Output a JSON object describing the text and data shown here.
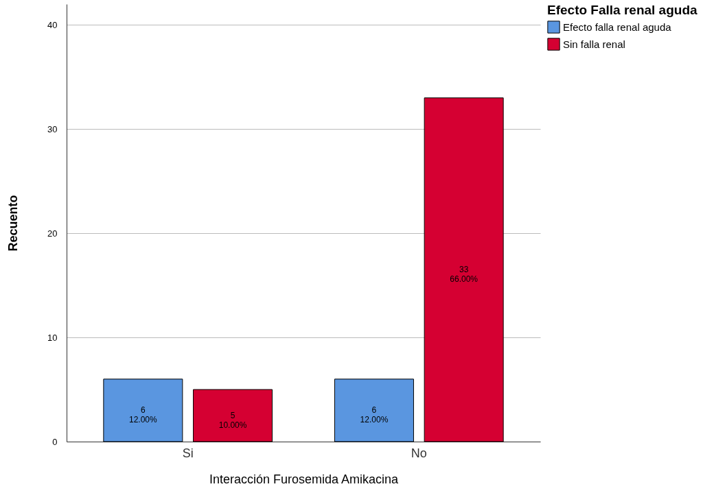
{
  "chart_data": {
    "type": "bar",
    "xlabel": "Interacción Furosemida Amikacina",
    "ylabel": "Recuento",
    "legend_title": "Efecto Falla renal aguda",
    "categories": [
      "Si",
      "No"
    ],
    "series": [
      {
        "name": "Efecto falla renal aguda",
        "color": "#5a96e0",
        "values": [
          6,
          6
        ],
        "value_labels": [
          "6\n12.00%",
          "6\n12.00%"
        ]
      },
      {
        "name": "Sin falla renal",
        "color": "#d50032",
        "values": [
          5,
          33
        ],
        "value_labels": [
          "5\n10.00%",
          "33\n66.00%"
        ]
      }
    ],
    "ylim": [
      0,
      42
    ],
    "yticks": [
      0,
      10,
      20,
      30,
      40
    ],
    "grid": "y",
    "legend": "top right"
  }
}
